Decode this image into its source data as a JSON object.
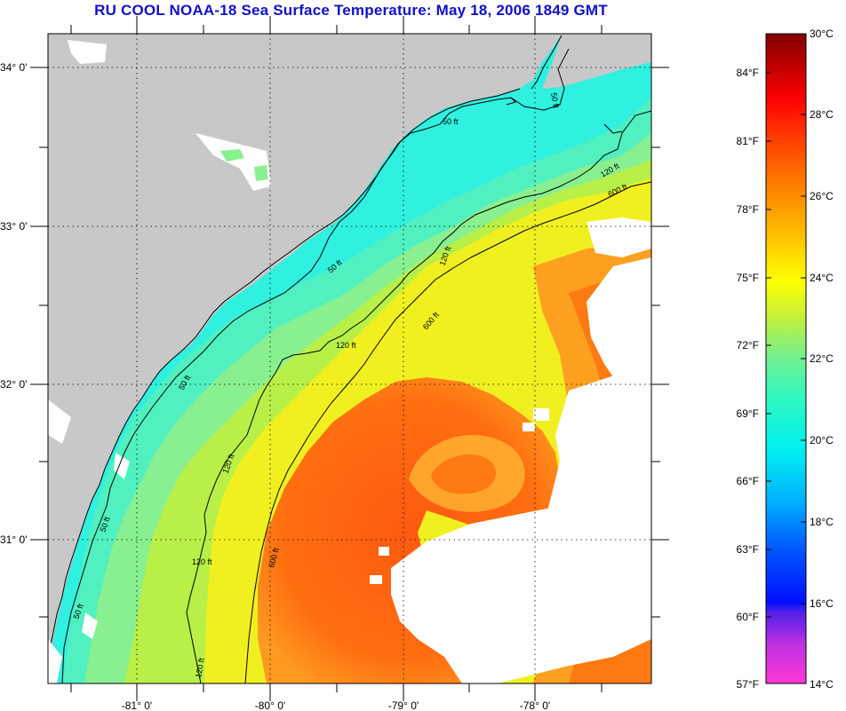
{
  "title": "RU COOL  NOAA-18  Sea Surface Temperature:  May 18, 2006 1849 GMT",
  "axes": {
    "lat_labels": [
      "34° 0'",
      "33° 0'",
      "32° 0'",
      "31° 0'"
    ],
    "lon_labels": [
      "-81° 0'",
      "-80° 0'",
      "-79° 0'",
      "-78° 0'"
    ]
  },
  "contour_labels": [
    "50 ft",
    "120 ft",
    "600 ft"
  ],
  "colorbar": {
    "fahrenheit_labels": [
      "84°F",
      "81°F",
      "78°F",
      "75°F",
      "72°F",
      "69°F",
      "66°F",
      "63°F",
      "60°F",
      "57°F"
    ],
    "celsius_labels": [
      "30°C",
      "28°C",
      "26°C",
      "24°C",
      "22°C",
      "20°C",
      "18°C",
      "16°C",
      "14°C"
    ],
    "stops": [
      "#ff38d8",
      "#b030e0",
      "#3820e8",
      "#0018ff",
      "#0080ff",
      "#00e8ff",
      "#20ffd8",
      "#70f090",
      "#c8f040",
      "#ffff00",
      "#ffc000",
      "#ff8000",
      "#ff3800",
      "#ff0000",
      "#c00000",
      "#800000"
    ]
  },
  "colors": {
    "land": "#c8c8c8",
    "cloud": "#ffffff",
    "coastal_water": "#40f0d0",
    "shelf_water": "#90f090",
    "warm_water": "#f0f020",
    "gulf_stream": "#ff6a10",
    "title": "#1010c8"
  }
}
